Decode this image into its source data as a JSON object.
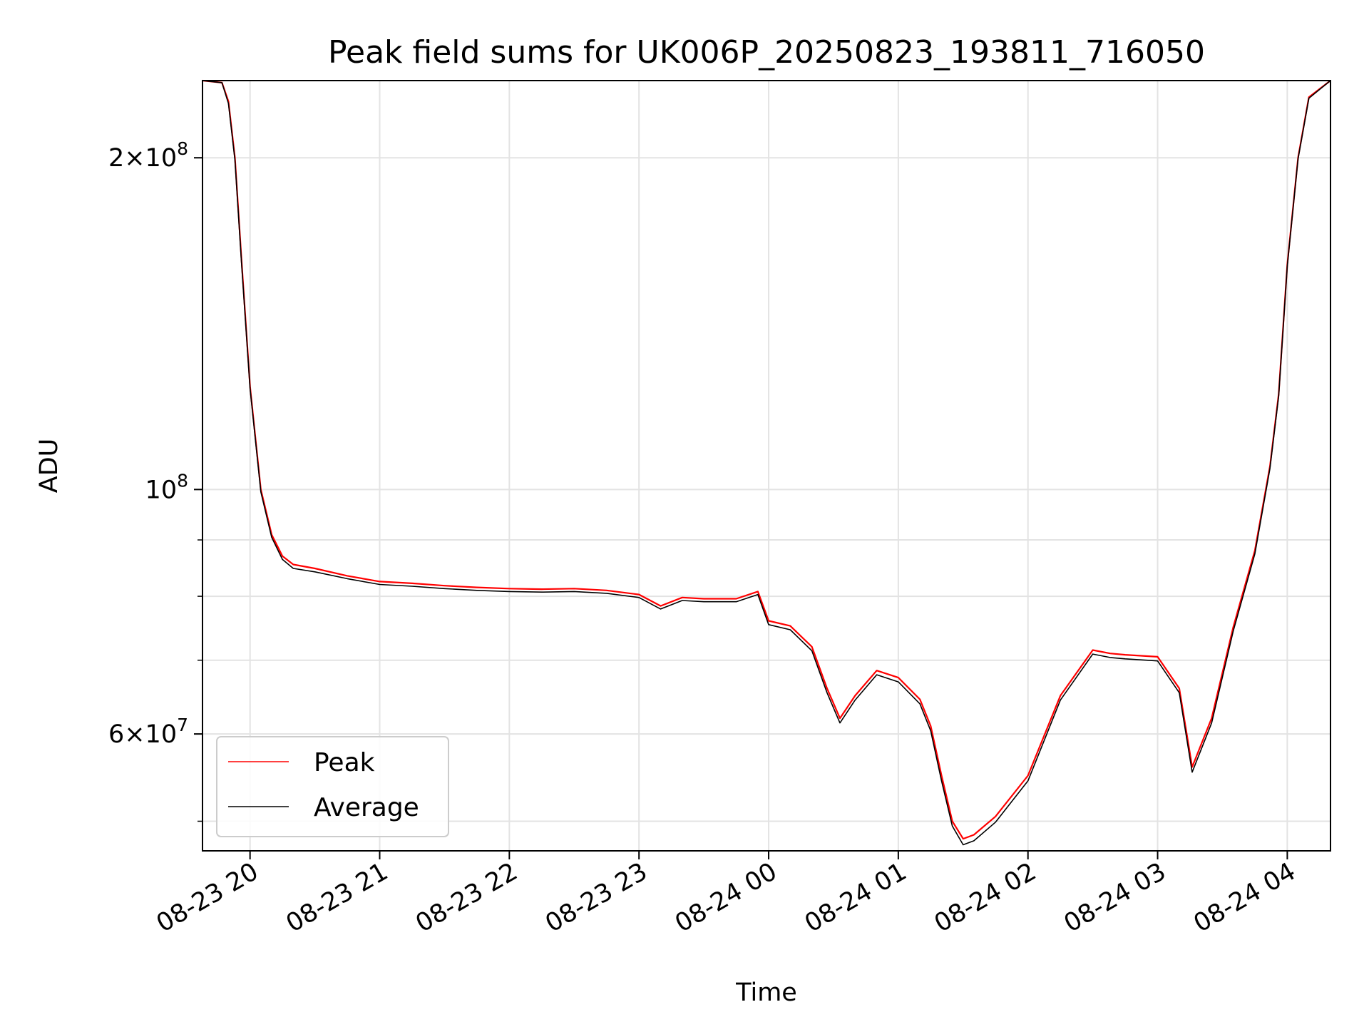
{
  "chart_data": {
    "type": "line",
    "title": "Peak field sums for UK006P_20250823_193811_716050",
    "xlabel": "Time",
    "ylabel": "ADU",
    "yscale": "log",
    "grid": true,
    "legend_position": "lower-left",
    "xlim": [
      "2025-08-23 19:38",
      "2025-08-24 04:20"
    ],
    "ylim": [
      47000000,
      235000000
    ],
    "x_ticks": [
      "08-23 20",
      "08-23 21",
      "08-23 22",
      "08-23 23",
      "08-24 00",
      "08-24 01",
      "08-24 02",
      "08-24 03",
      "08-24 04"
    ],
    "y_tick_labels": [
      {
        "value": 200000000,
        "mantissa": "2",
        "exponent": "8"
      },
      {
        "value": 100000000,
        "mantissa": "",
        "exponent": "8"
      },
      {
        "value": 60000000,
        "mantissa": "6",
        "exponent": "7"
      }
    ],
    "y_minor_ticks": [
      50000000,
      70000000,
      80000000,
      90000000
    ],
    "series": [
      {
        "name": "Peak",
        "color": "#ff0000",
        "x": [
          "2025-08-23 19:38",
          "2025-08-23 19:47",
          "2025-08-23 19:50",
          "2025-08-23 19:53",
          "2025-08-23 19:56",
          "2025-08-23 20:00",
          "2025-08-23 20:05",
          "2025-08-23 20:10",
          "2025-08-23 20:15",
          "2025-08-23 20:20",
          "2025-08-23 20:30",
          "2025-08-23 20:45",
          "2025-08-23 21:00",
          "2025-08-23 21:15",
          "2025-08-23 21:30",
          "2025-08-23 21:45",
          "2025-08-23 22:00",
          "2025-08-23 22:15",
          "2025-08-23 22:30",
          "2025-08-23 22:45",
          "2025-08-23 23:00",
          "2025-08-23 23:10",
          "2025-08-23 23:20",
          "2025-08-23 23:30",
          "2025-08-23 23:45",
          "2025-08-23 23:55",
          "2025-08-24 00:00",
          "2025-08-24 00:10",
          "2025-08-24 00:20",
          "2025-08-24 00:27",
          "2025-08-24 00:33",
          "2025-08-24 00:40",
          "2025-08-24 00:50",
          "2025-08-24 01:00",
          "2025-08-24 01:10",
          "2025-08-24 01:15",
          "2025-08-24 01:20",
          "2025-08-24 01:25",
          "2025-08-24 01:30",
          "2025-08-24 01:35",
          "2025-08-24 01:45",
          "2025-08-24 02:00",
          "2025-08-24 02:15",
          "2025-08-24 02:30",
          "2025-08-24 02:38",
          "2025-08-24 02:45",
          "2025-08-24 03:00",
          "2025-08-24 03:10",
          "2025-08-24 03:16",
          "2025-08-24 03:25",
          "2025-08-24 03:35",
          "2025-08-24 03:45",
          "2025-08-24 03:52",
          "2025-08-24 03:56",
          "2025-08-24 04:00",
          "2025-08-24 04:05",
          "2025-08-24 04:10",
          "2025-08-24 04:20"
        ],
        "values": [
          235000000,
          234000000,
          225000000,
          200000000,
          162000000,
          124000000,
          100000000,
          91000000,
          87000000,
          85500000,
          84800000,
          83500000,
          82500000,
          82200000,
          81800000,
          81500000,
          81300000,
          81200000,
          81300000,
          81000000,
          80300000,
          78400000,
          79800000,
          79600000,
          79600000,
          80800000,
          76000000,
          75200000,
          72000000,
          66000000,
          62000000,
          65000000,
          68500000,
          67500000,
          64500000,
          61000000,
          55000000,
          50000000,
          48200000,
          48600000,
          50500000,
          55000000,
          65000000,
          71500000,
          71000000,
          70800000,
          70500000,
          66000000,
          56000000,
          62000000,
          75000000,
          88000000,
          105000000,
          122000000,
          160000000,
          200000000,
          227000000,
          235000000
        ]
      },
      {
        "name": "Average",
        "color": "#000000",
        "x": [
          "2025-08-23 19:38",
          "2025-08-23 19:47",
          "2025-08-23 19:50",
          "2025-08-23 19:53",
          "2025-08-23 19:56",
          "2025-08-23 20:00",
          "2025-08-23 20:05",
          "2025-08-23 20:10",
          "2025-08-23 20:15",
          "2025-08-23 20:20",
          "2025-08-23 20:30",
          "2025-08-23 20:45",
          "2025-08-23 21:00",
          "2025-08-23 21:15",
          "2025-08-23 21:30",
          "2025-08-23 21:45",
          "2025-08-23 22:00",
          "2025-08-23 22:15",
          "2025-08-23 22:30",
          "2025-08-23 22:45",
          "2025-08-23 23:00",
          "2025-08-23 23:10",
          "2025-08-23 23:20",
          "2025-08-23 23:30",
          "2025-08-23 23:45",
          "2025-08-23 23:55",
          "2025-08-24 00:00",
          "2025-08-24 00:10",
          "2025-08-24 00:20",
          "2025-08-24 00:27",
          "2025-08-24 00:33",
          "2025-08-24 00:40",
          "2025-08-24 00:50",
          "2025-08-24 01:00",
          "2025-08-24 01:10",
          "2025-08-24 01:15",
          "2025-08-24 01:20",
          "2025-08-24 01:25",
          "2025-08-24 01:30",
          "2025-08-24 01:35",
          "2025-08-24 01:45",
          "2025-08-24 02:00",
          "2025-08-24 02:15",
          "2025-08-24 02:30",
          "2025-08-24 02:38",
          "2025-08-24 02:45",
          "2025-08-24 03:00",
          "2025-08-24 03:10",
          "2025-08-24 03:16",
          "2025-08-24 03:25",
          "2025-08-24 03:35",
          "2025-08-24 03:45",
          "2025-08-24 03:52",
          "2025-08-24 03:56",
          "2025-08-24 04:00",
          "2025-08-24 04:05",
          "2025-08-24 04:10",
          "2025-08-24 04:20"
        ],
        "values": [
          235000000,
          234000000,
          224000000,
          199000000,
          161000000,
          123500000,
          99500000,
          90500000,
          86400000,
          84800000,
          84200000,
          83000000,
          82000000,
          81700000,
          81300000,
          81000000,
          80800000,
          80700000,
          80800000,
          80500000,
          79800000,
          77900000,
          79300000,
          79100000,
          79100000,
          80300000,
          75400000,
          74600000,
          71400000,
          65400000,
          61400000,
          64400000,
          67900000,
          66900000,
          63900000,
          60400000,
          54400000,
          49500000,
          47600000,
          48000000,
          49900000,
          54400000,
          64400000,
          70900000,
          70400000,
          70200000,
          69900000,
          65400000,
          55400000,
          61400000,
          74400000,
          87400000,
          104500000,
          121500000,
          159500000,
          199500000,
          226500000,
          235000000
        ]
      }
    ]
  }
}
